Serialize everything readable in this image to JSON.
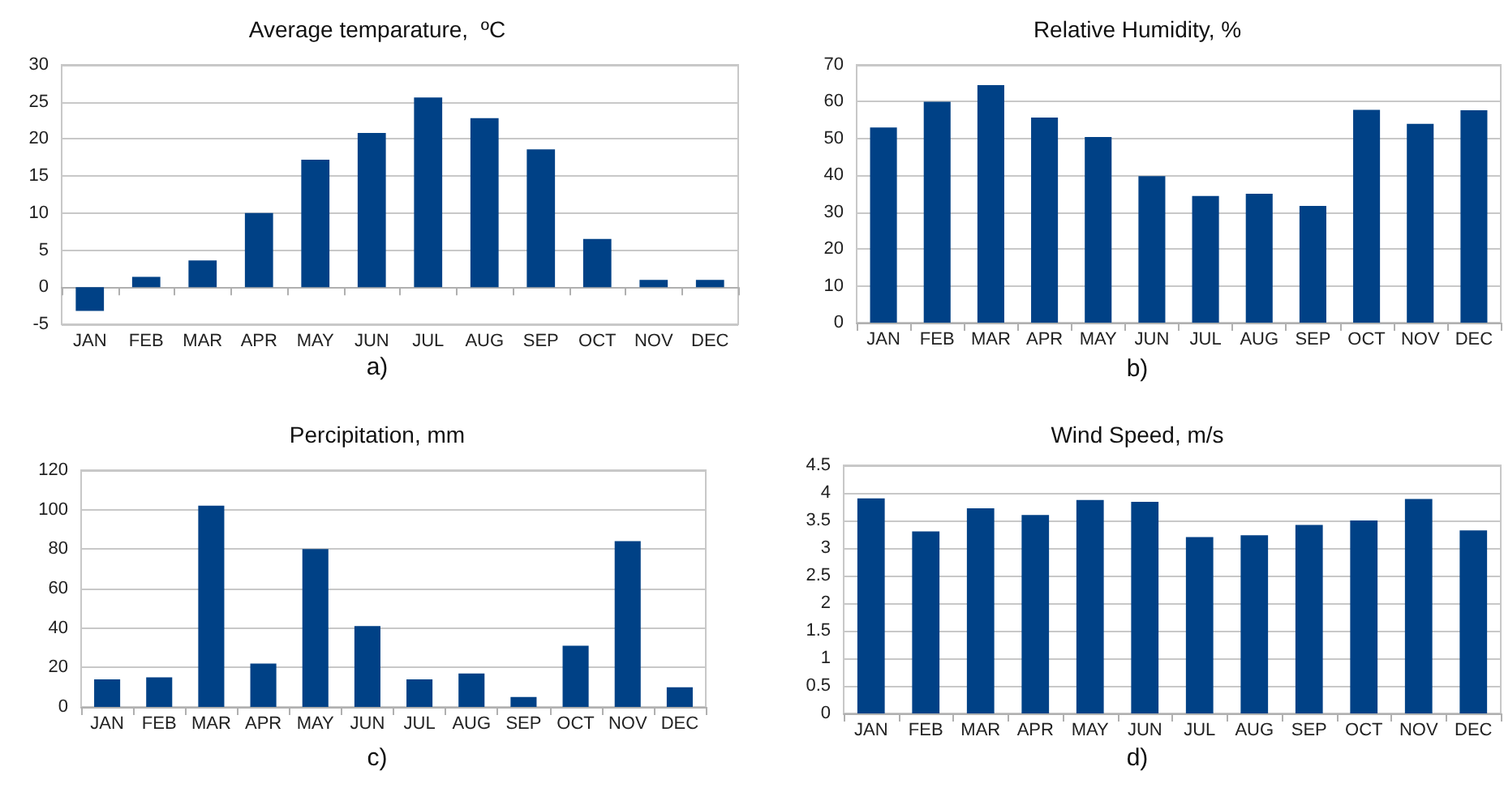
{
  "chart_data": [
    {
      "type": "bar",
      "title": "Average temparature,  ºC",
      "annotations": [
        "a)"
      ],
      "categories": [
        "JAN",
        "FEB",
        "MAR",
        "APR",
        "MAY",
        "JUN",
        "JUL",
        "AUG",
        "SEP",
        "OCT",
        "NOV",
        "DEC"
      ],
      "values": [
        -3.2,
        1.4,
        3.6,
        10,
        17.2,
        20.8,
        25.6,
        22.8,
        18.6,
        6.5,
        1,
        1
      ],
      "color": "#004186",
      "ylim": [
        -5,
        30
      ],
      "yticks": [
        -5,
        0,
        5,
        10,
        15,
        20,
        25,
        30
      ],
      "grid": "y"
    },
    {
      "type": "bar",
      "title": "Relative Humidity, %",
      "annotations": [
        "b)"
      ],
      "categories": [
        "JAN",
        "FEB",
        "MAR",
        "APR",
        "MAY",
        "JUN",
        "JUL",
        "AUG",
        "SEP",
        "OCT",
        "NOV",
        "DEC"
      ],
      "values": [
        53,
        60,
        64.5,
        55.7,
        50.4,
        39.8,
        34.4,
        35,
        31.7,
        57.8,
        54,
        57.7
      ],
      "color": "#004186",
      "ylim": [
        0,
        70
      ],
      "yticks": [
        0,
        10,
        20,
        30,
        40,
        50,
        60,
        70
      ],
      "grid": "y"
    },
    {
      "type": "bar",
      "title": "Percipitation, mm",
      "annotations": [
        "c)"
      ],
      "categories": [
        "JAN",
        "FEB",
        "MAR",
        "APR",
        "MAY",
        "JUN",
        "JUL",
        "AUG",
        "SEP",
        "OCT",
        "NOV",
        "DEC"
      ],
      "values": [
        14,
        15,
        102,
        22,
        80,
        41,
        14,
        17,
        5,
        31,
        84,
        10
      ],
      "color": "#004186",
      "ylim": [
        0,
        120
      ],
      "yticks": [
        0,
        20,
        40,
        60,
        80,
        100,
        120
      ],
      "grid": "y"
    },
    {
      "type": "bar",
      "title": "Wind Speed, m/s",
      "annotations": [
        "d)"
      ],
      "categories": [
        "JAN",
        "FEB",
        "MAR",
        "APR",
        "MAY",
        "JUN",
        "JUL",
        "AUG",
        "SEP",
        "OCT",
        "NOV",
        "DEC"
      ],
      "values": [
        3.9,
        3.3,
        3.72,
        3.6,
        3.87,
        3.84,
        3.2,
        3.23,
        3.42,
        3.5,
        3.89,
        3.32
      ],
      "color": "#004186",
      "ylim": [
        0,
        4.5
      ],
      "yticks": [
        0,
        0.5,
        1,
        1.5,
        2,
        2.5,
        3,
        3.5,
        4,
        4.5
      ],
      "grid": "y"
    }
  ]
}
